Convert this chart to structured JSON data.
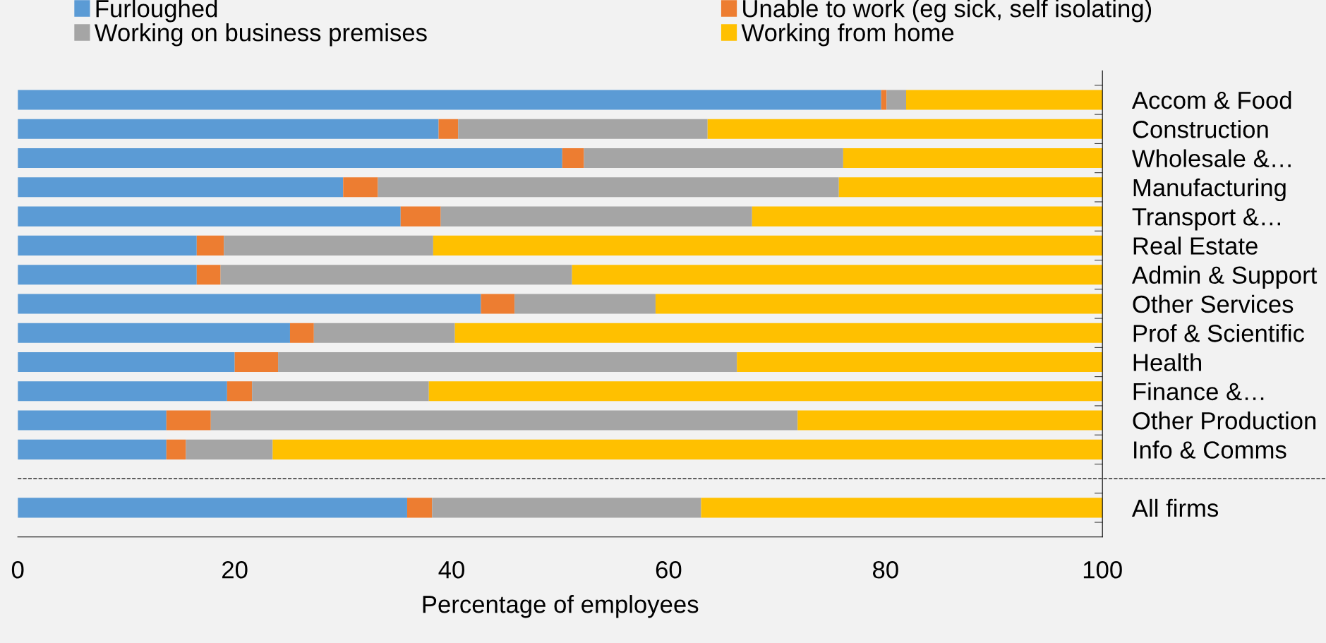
{
  "chart_data": {
    "type": "bar",
    "orientation": "horizontal",
    "stacked": true,
    "xlabel": "Percentage of employees",
    "categories": [
      "Accom & Food",
      "Construction",
      "Wholesale &…",
      "Manufacturing",
      "Transport &…",
      "Real Estate",
      "Admin & Support",
      "Other Services",
      "Prof & Scientific",
      "Health",
      "Finance &…",
      "Other Production",
      "Info & Comms",
      null,
      "All firms"
    ],
    "series": [
      {
        "name": "Furloughed",
        "color": "#5b9bd5",
        "values": [
          79.6,
          38.8,
          50.2,
          30.0,
          35.3,
          16.5,
          16.5,
          42.7,
          25.1,
          20.0,
          19.3,
          13.7,
          13.7,
          null,
          35.9
        ]
      },
      {
        "name": "Unable to work (eg sick, self isolating)",
        "color": "#ed7d31",
        "values": [
          0.5,
          1.8,
          2.0,
          3.2,
          3.7,
          2.5,
          2.2,
          3.1,
          2.2,
          4.0,
          2.3,
          4.1,
          1.8,
          null,
          2.3
        ]
      },
      {
        "name": "Working on business premises",
        "color": "#a5a5a5",
        "values": [
          1.8,
          23.0,
          23.9,
          42.5,
          28.7,
          19.3,
          32.4,
          13.0,
          13.0,
          42.3,
          16.3,
          54.1,
          8.0,
          null,
          24.8
        ]
      },
      {
        "name": "Working from home",
        "color": "#ffc000",
        "values": [
          18.1,
          36.4,
          23.9,
          24.3,
          32.3,
          61.7,
          48.9,
          41.2,
          59.7,
          33.7,
          62.1,
          28.1,
          76.5,
          null,
          37.0
        ]
      }
    ],
    "xlim": [
      0,
      100
    ],
    "xticks": [
      0,
      20,
      40,
      60,
      80,
      100
    ],
    "grid": false,
    "legend": "top"
  }
}
